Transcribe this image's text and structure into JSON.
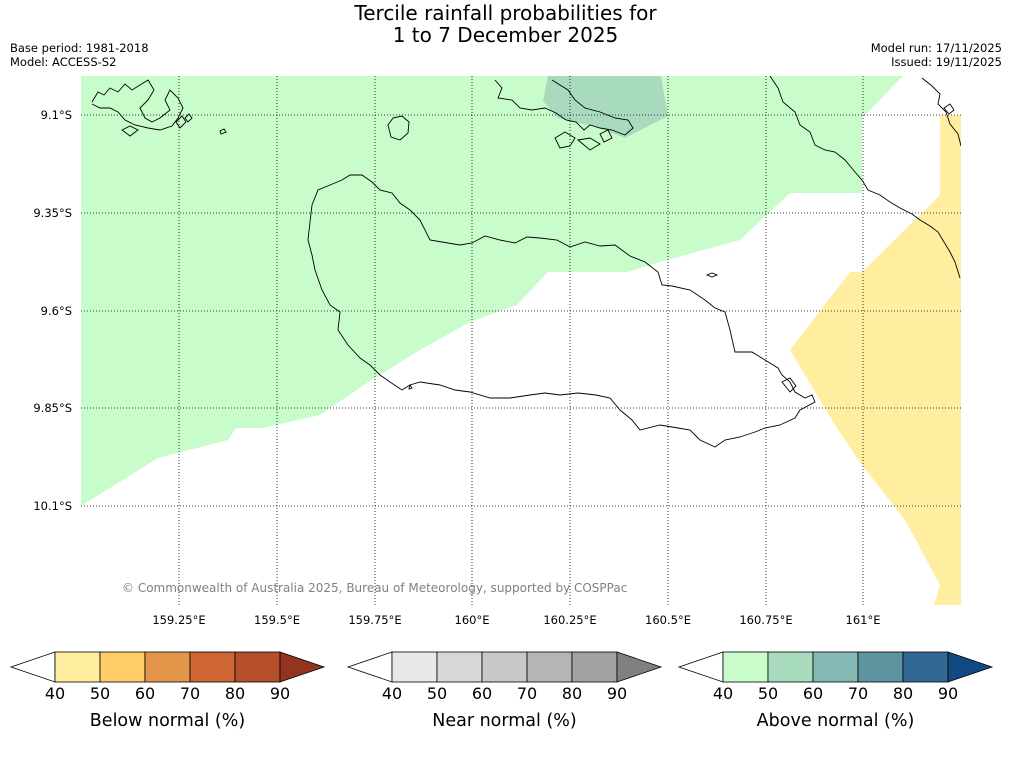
{
  "title": {
    "line1": "Tercile rainfall probabilities for",
    "line2": "1 to 7 December 2025"
  },
  "meta": {
    "base_period": "Base period: 1981-2018",
    "model": "Model: ACCESS-S2",
    "model_run": "Model run: 17/11/2025",
    "issued": "Issued: 19/11/2025"
  },
  "map": {
    "lat_labels": [
      "9.1°S",
      "9.35°S",
      "9.6°S",
      "9.85°S",
      "10.1°S"
    ],
    "lon_labels": [
      "159.25°E",
      "159.5°E",
      "159.75°E",
      "160°E",
      "160.25°E",
      "160.5°E",
      "160.75°E",
      "161°E"
    ],
    "copyright": "© Commonwealth of Australia 2025, Bureau of Meteorology, supported by COSPPac"
  },
  "colorbars": [
    {
      "name": "below",
      "label": "Below normal (%)",
      "ticks": [
        "40",
        "50",
        "60",
        "70",
        "80",
        "90"
      ],
      "colors": [
        "#ffffff",
        "#ffeea0",
        "#ffcc66",
        "#e3954a",
        "#cf6535",
        "#b54e2a",
        "#923420"
      ]
    },
    {
      "name": "near",
      "label": "Near normal (%)",
      "ticks": [
        "40",
        "50",
        "60",
        "70",
        "80",
        "90"
      ],
      "colors": [
        "#ffffff",
        "#e8e8e8",
        "#d8d8d8",
        "#c8c8c8",
        "#b5b5b5",
        "#a2a2a2",
        "#808080"
      ]
    },
    {
      "name": "above",
      "label": "Above normal (%)",
      "ticks": [
        "40",
        "50",
        "60",
        "70",
        "80",
        "90"
      ],
      "colors": [
        "#ffffff",
        "#c9fccb",
        "#a8dbbd",
        "#84b8b3",
        "#5e94a0",
        "#336794",
        "#0f4a82"
      ]
    }
  ]
}
